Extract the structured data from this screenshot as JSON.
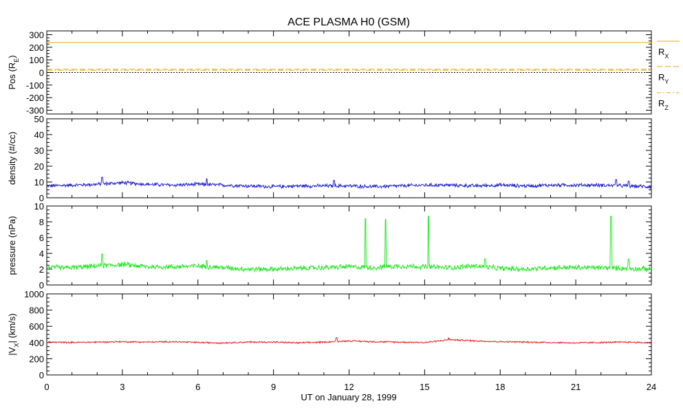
{
  "chart_data": {
    "title": "ACE PLASMA H0 (GSM)",
    "xlabel": "UT on January 28, 1999",
    "x_ticks": [
      "0",
      "3",
      "6",
      "9",
      "12",
      "15",
      "18",
      "21",
      "24"
    ],
    "xlim": [
      0,
      24
    ],
    "panels": [
      {
        "id": "position",
        "type": "line",
        "ylabel_main": "Pos (R",
        "ylabel_sub": "E",
        "ylabel_end": ")",
        "ylim": [
          -330,
          330
        ],
        "y_ticks": [
          "300",
          "200",
          "100",
          "0",
          "-100",
          "-200",
          "-300"
        ],
        "series": [
          {
            "name": "R",
            "sub": "X",
            "color": "#e8a800",
            "style": "solid",
            "values": [
              238,
              238
            ]
          },
          {
            "name": "R",
            "sub": "Y",
            "color": "#e8a800",
            "style": "dashed",
            "values": [
              25,
              25
            ]
          },
          {
            "name": "R",
            "sub": "Z",
            "color": "#e8a800",
            "style": "dashdot",
            "values": [
              18,
              18
            ]
          }
        ],
        "zero_line": true
      },
      {
        "id": "density",
        "type": "line",
        "ylabel_main": "density (#/cc)",
        "ylim": [
          0,
          50
        ],
        "y_ticks": [
          "50",
          "40",
          "30",
          "20",
          "10",
          "0"
        ],
        "color": "#2020d0",
        "baseline": [
          7.5,
          8.0,
          8.5,
          9.5,
          8.5,
          8.0,
          8.5,
          8.0,
          7.5,
          7.0,
          7.5,
          7.5,
          7.5,
          7.0,
          7.5,
          8.0,
          8.0,
          7.5,
          8.0,
          7.5,
          8.0,
          8.0,
          8.0,
          7.5,
          7.0
        ],
        "noise": 1.2,
        "spikes": [
          [
            2.2,
            13.0
          ],
          [
            6.35,
            12.0
          ],
          [
            11.4,
            11.0
          ],
          [
            22.6,
            11.5
          ],
          [
            23.1,
            10.5
          ]
        ]
      },
      {
        "id": "pressure",
        "type": "line",
        "ylabel_main": "pressure (nPa)",
        "ylim": [
          0,
          10
        ],
        "y_ticks": [
          "10",
          "8",
          "6",
          "4",
          "2",
          "0"
        ],
        "color": "#22e822",
        "baseline": [
          2.2,
          2.2,
          2.4,
          2.6,
          2.3,
          2.3,
          2.4,
          2.2,
          2.0,
          2.0,
          2.1,
          2.2,
          2.3,
          2.2,
          2.4,
          2.3,
          2.2,
          2.4,
          2.1,
          2.0,
          2.2,
          2.2,
          2.2,
          2.1,
          2.0
        ],
        "noise": 0.35,
        "spikes": [
          [
            2.2,
            3.9
          ],
          [
            6.35,
            3.1
          ],
          [
            12.65,
            8.4
          ],
          [
            13.45,
            8.3
          ],
          [
            15.15,
            8.7
          ],
          [
            17.4,
            3.3
          ],
          [
            22.4,
            8.7
          ],
          [
            23.1,
            3.3
          ]
        ]
      },
      {
        "id": "velocity",
        "type": "line",
        "ylabel_main": "|V",
        "ylabel_sub": "X",
        "ylabel_end": "| (km/s)",
        "ylim": [
          0,
          1000
        ],
        "y_ticks": [
          "1000",
          "800",
          "600",
          "400",
          "200",
          "0"
        ],
        "color": "#e02020",
        "baseline": [
          405,
          400,
          405,
          410,
          405,
          410,
          400,
          395,
          405,
          405,
          395,
          405,
          420,
          410,
          405,
          400,
          435,
          420,
          410,
          405,
          400,
          395,
          400,
          405,
          395
        ],
        "noise": 10,
        "spikes": [
          [
            11.5,
            460
          ],
          [
            15.95,
            455
          ]
        ]
      }
    ]
  }
}
